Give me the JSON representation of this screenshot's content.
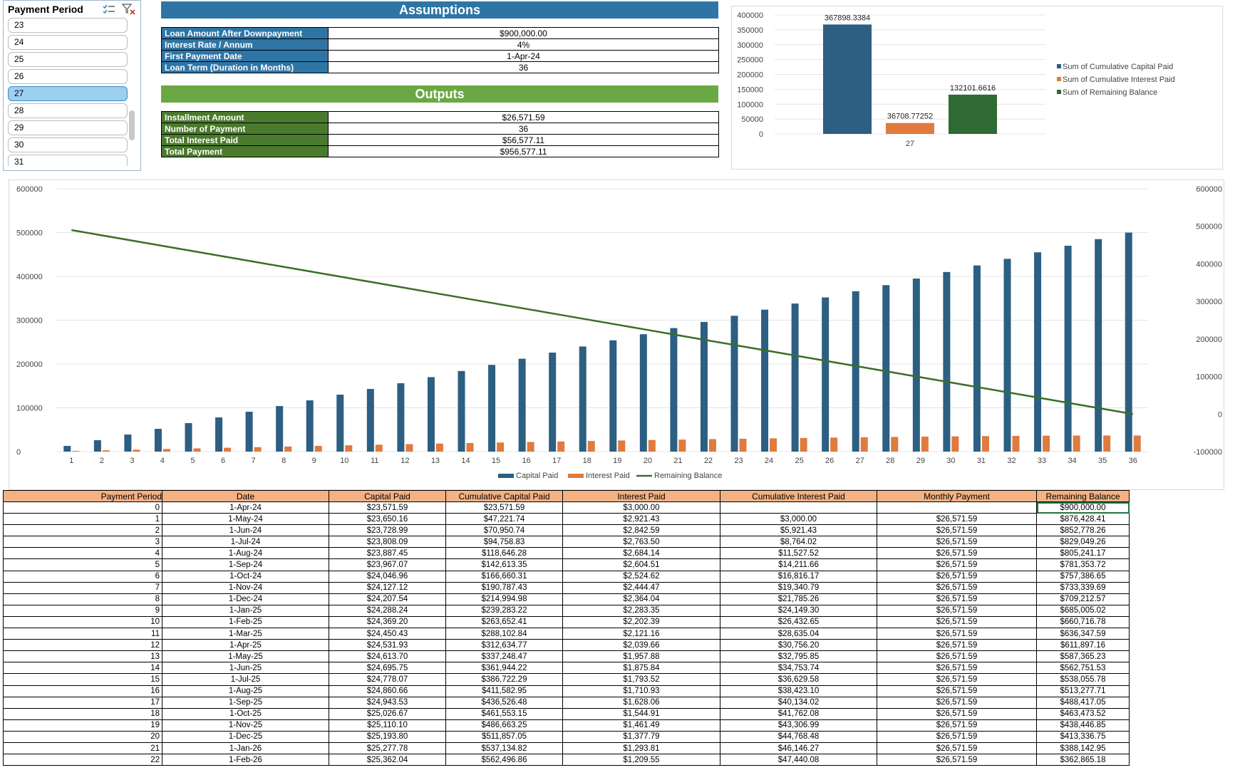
{
  "slicer": {
    "title": "Payment Period",
    "items": [
      "23",
      "24",
      "25",
      "26",
      "27",
      "28",
      "29",
      "30",
      "31"
    ],
    "selected": "27"
  },
  "assumptions": {
    "title": "Assumptions",
    "rows": [
      {
        "label": "Loan Amount After Downpayment",
        "value": "$900,000.00"
      },
      {
        "label": "Interest Rate / Annum",
        "value": "4%"
      },
      {
        "label": "First Payment Date",
        "value": "1-Apr-24"
      },
      {
        "label": "Loan Term (Duration in Months)",
        "value": "36"
      }
    ]
  },
  "outputs": {
    "title": "Outputs",
    "rows": [
      {
        "label": "Installment Amount",
        "value": "$26,571.59"
      },
      {
        "label": "Number of Payment",
        "value": "36"
      },
      {
        "label": "Total Interest Paid",
        "value": "$56,577.11"
      },
      {
        "label": "Total Payment",
        "value": "$956,577.11"
      }
    ]
  },
  "chart_data": [
    {
      "type": "bar",
      "categories": [
        "27"
      ],
      "series": [
        {
          "name": "Sum of Cumulative Capital Paid",
          "values": [
            367898.3384
          ],
          "labels": [
            "367898.3384"
          ],
          "color": "#2c5f82"
        },
        {
          "name": "Sum of Cumulative Interest Paid",
          "values": [
            36708.77252
          ],
          "labels": [
            "36708.77252"
          ],
          "color": "#e07a3f"
        },
        {
          "name": "Sum of Remaining Balance",
          "values": [
            132101.6616
          ],
          "labels": [
            "132101.6616"
          ],
          "color": "#2f6a35"
        }
      ],
      "ylim": [
        0,
        400000
      ],
      "yticks": [
        "400000",
        "350000",
        "300000",
        "250000",
        "200000",
        "150000",
        "100000",
        "50000",
        "0"
      ],
      "legend": "right",
      "grid": true
    },
    {
      "type": "bar",
      "categories": [
        "1",
        "2",
        "3",
        "4",
        "5",
        "6",
        "7",
        "8",
        "9",
        "10",
        "11",
        "12",
        "13",
        "14",
        "15",
        "16",
        "17",
        "18",
        "19",
        "20",
        "21",
        "22",
        "23",
        "24",
        "25",
        "26",
        "27",
        "28",
        "29",
        "30",
        "31",
        "32",
        "33",
        "34",
        "35",
        "36"
      ],
      "series": [
        {
          "name": "Capital Paid",
          "type": "bar",
          "color": "#2c5f82",
          "values": [
            13000,
            26000,
            39000,
            52000,
            65000,
            78000,
            91000,
            104000,
            117000,
            130000,
            143000,
            156000,
            170000,
            184000,
            198000,
            212000,
            226000,
            240000,
            254000,
            268000,
            282000,
            296000,
            310000,
            324000,
            338000,
            352000,
            366000,
            380000,
            395000,
            410000,
            425000,
            440000,
            455000,
            470000,
            485000,
            500000
          ]
        },
        {
          "name": "Interest Paid",
          "type": "bar",
          "color": "#e07a3f",
          "values": [
            1500,
            3000,
            4500,
            6000,
            7400,
            8800,
            10200,
            11600,
            13000,
            14400,
            15800,
            17100,
            18400,
            19600,
            20800,
            22000,
            23200,
            24300,
            25400,
            26500,
            27500,
            28500,
            29400,
            30300,
            31200,
            32000,
            32800,
            33500,
            34200,
            34800,
            35400,
            35900,
            36300,
            36600,
            36700,
            36800
          ]
        },
        {
          "name": "Remaining Balance",
          "type": "line",
          "color": "#3a6e27",
          "axis": "right",
          "values": [
            490000,
            476000,
            462000,
            448000,
            434000,
            420000,
            406000,
            392000,
            378000,
            364000,
            350000,
            336000,
            322000,
            308000,
            294000,
            280000,
            266000,
            252000,
            238000,
            224000,
            210000,
            196000,
            182000,
            168000,
            154000,
            140000,
            126000,
            112000,
            98000,
            84000,
            70000,
            56000,
            42000,
            28000,
            14000,
            0
          ]
        }
      ],
      "ylim": [
        0,
        600000
      ],
      "yticks": [
        "600000",
        "500000",
        "400000",
        "300000",
        "200000",
        "100000",
        "0"
      ],
      "y2lim": [
        -100000,
        600000
      ],
      "y2ticks": [
        "600000",
        "500000",
        "400000",
        "300000",
        "200000",
        "100000",
        "0",
        "-100000"
      ],
      "legend": "bottom",
      "grid": true
    }
  ],
  "table": {
    "headers": [
      "Payment Period",
      "Date",
      "Capital Paid",
      "Cumulative Capital Paid",
      "Interest Paid",
      "Cumulative Interest Paid",
      "Monthly Payment",
      "Remaining Balance"
    ],
    "rows": [
      [
        "0",
        "1-Apr-24",
        "$23,571.59",
        "$23,571.59",
        "$3,000.00",
        "",
        "",
        "$900,000.00"
      ],
      [
        "1",
        "1-May-24",
        "$23,650.16",
        "$47,221.74",
        "$2,921.43",
        "$3,000.00",
        "$26,571.59",
        "$876,428.41"
      ],
      [
        "2",
        "1-Jun-24",
        "$23,728.99",
        "$70,950.74",
        "$2,842.59",
        "$5,921.43",
        "$26,571.59",
        "$852,778.26"
      ],
      [
        "3",
        "1-Jul-24",
        "$23,808.09",
        "$94,758.83",
        "$2,763.50",
        "$8,764.02",
        "$26,571.59",
        "$829,049.26"
      ],
      [
        "4",
        "1-Aug-24",
        "$23,887.45",
        "$118,646.28",
        "$2,684.14",
        "$11,527.52",
        "$26,571.59",
        "$805,241.17"
      ],
      [
        "5",
        "1-Sep-24",
        "$23,967.07",
        "$142,613.35",
        "$2,604.51",
        "$14,211.66",
        "$26,571.59",
        "$781,353.72"
      ],
      [
        "6",
        "1-Oct-24",
        "$24,046.96",
        "$166,660.31",
        "$2,524.62",
        "$16,816.17",
        "$26,571.59",
        "$757,386.65"
      ],
      [
        "7",
        "1-Nov-24",
        "$24,127.12",
        "$190,787.43",
        "$2,444.47",
        "$19,340.79",
        "$26,571.59",
        "$733,339.69"
      ],
      [
        "8",
        "1-Dec-24",
        "$24,207.54",
        "$214,994.98",
        "$2,364.04",
        "$21,785.26",
        "$26,571.59",
        "$709,212.57"
      ],
      [
        "9",
        "1-Jan-25",
        "$24,288.24",
        "$239,283.22",
        "$2,283.35",
        "$24,149.30",
        "$26,571.59",
        "$685,005.02"
      ],
      [
        "10",
        "1-Feb-25",
        "$24,369.20",
        "$263,652.41",
        "$2,202.39",
        "$26,432.65",
        "$26,571.59",
        "$660,716.78"
      ],
      [
        "11",
        "1-Mar-25",
        "$24,450.43",
        "$288,102.84",
        "$2,121.16",
        "$28,635.04",
        "$26,571.59",
        "$636,347.59"
      ],
      [
        "12",
        "1-Apr-25",
        "$24,531.93",
        "$312,634.77",
        "$2,039.66",
        "$30,756.20",
        "$26,571.59",
        "$611,897.16"
      ],
      [
        "13",
        "1-May-25",
        "$24,613.70",
        "$337,248.47",
        "$1,957.88",
        "$32,795.85",
        "$26,571.59",
        "$587,365.23"
      ],
      [
        "14",
        "1-Jun-25",
        "$24,695.75",
        "$361,944.22",
        "$1,875.84",
        "$34,753.74",
        "$26,571.59",
        "$562,751.53"
      ],
      [
        "15",
        "1-Jul-25",
        "$24,778.07",
        "$386,722.29",
        "$1,793.52",
        "$36,629.58",
        "$26,571.59",
        "$538,055.78"
      ],
      [
        "16",
        "1-Aug-25",
        "$24,860.66",
        "$411,582.95",
        "$1,710.93",
        "$38,423.10",
        "$26,571.59",
        "$513,277.71"
      ],
      [
        "17",
        "1-Sep-25",
        "$24,943.53",
        "$436,526.48",
        "$1,628.06",
        "$40,134.02",
        "$26,571.59",
        "$488,417.05"
      ],
      [
        "18",
        "1-Oct-25",
        "$25,026.67",
        "$461,553.15",
        "$1,544.91",
        "$41,762.08",
        "$26,571.59",
        "$463,473.52"
      ],
      [
        "19",
        "1-Nov-25",
        "$25,110.10",
        "$486,663.25",
        "$1,461.49",
        "$43,306.99",
        "$26,571.59",
        "$438,446.85"
      ],
      [
        "20",
        "1-Dec-25",
        "$25,193.80",
        "$511,857.05",
        "$1,377.79",
        "$44,768.48",
        "$26,571.59",
        "$413,336.75"
      ],
      [
        "21",
        "1-Jan-26",
        "$25,277.78",
        "$537,134.82",
        "$1,293.81",
        "$46,146.27",
        "$26,571.59",
        "$388,142.95"
      ],
      [
        "22",
        "1-Feb-26",
        "$25,362.04",
        "$562,496.86",
        "$1,209.55",
        "$47,440.08",
        "$26,571.59",
        "$362,865.18"
      ]
    ]
  }
}
